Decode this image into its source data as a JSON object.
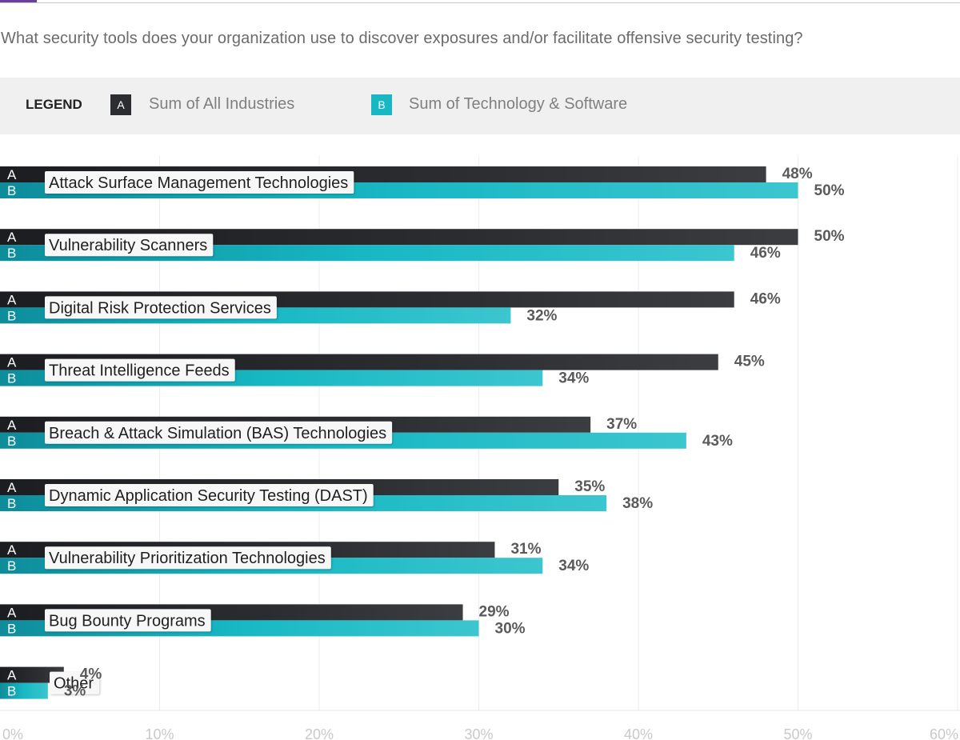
{
  "question": "What security tools does your organization use to discover exposures and/or facilitate offensive security testing?",
  "legend": {
    "title": "LEGEND",
    "a_marker": "A",
    "a_label": "Sum of All Industries",
    "b_marker": "B",
    "b_label": "Sum of Technology & Software"
  },
  "colors": {
    "accent": "#6b3fa0",
    "series_a": "#2b2d30",
    "series_b": "#17b8c4"
  },
  "chart_data": {
    "type": "bar",
    "orientation": "horizontal",
    "categories": [
      "Attack Surface Management Technologies",
      "Vulnerability Scanners",
      "Digital Risk Protection Services",
      "Threat Intelligence Feeds",
      "Breach & Attack Simulation (BAS) Technologies",
      "Dynamic Application Security Testing (DAST)",
      "Vulnerability Prioritization Technologies",
      "Bug Bounty Programs",
      "Other"
    ],
    "series": [
      {
        "name": "Sum of All Industries",
        "marker": "A",
        "values": [
          48,
          50,
          46,
          45,
          37,
          35,
          31,
          29,
          4
        ]
      },
      {
        "name": "Sum of Technology & Software",
        "marker": "B",
        "values": [
          50,
          46,
          32,
          34,
          43,
          38,
          34,
          30,
          3
        ]
      }
    ],
    "value_suffix": "%",
    "xlim": [
      0,
      60
    ],
    "ticks": [
      0,
      10,
      20,
      30,
      40,
      50,
      60
    ],
    "tick_labels": [
      "0%",
      "10%",
      "20%",
      "30%",
      "40%",
      "50%",
      "60%"
    ],
    "grid": true
  }
}
